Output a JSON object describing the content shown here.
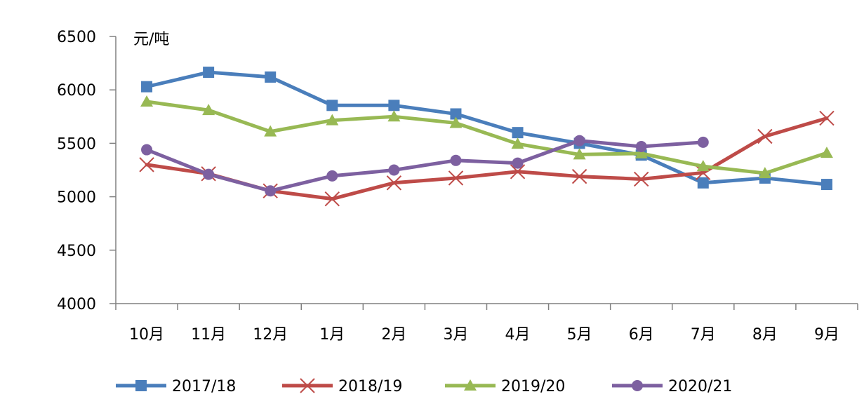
{
  "chart_data": {
    "type": "line",
    "unit_label": "元/吨",
    "categories": [
      "10月",
      "11月",
      "12月",
      "1月",
      "2月",
      "3月",
      "4月",
      "5月",
      "6月",
      "7月",
      "8月",
      "9月"
    ],
    "ylim": [
      4000,
      6500
    ],
    "yticks": [
      4000,
      4500,
      5000,
      5500,
      6000,
      6500
    ],
    "grid": false,
    "legend_position": "bottom",
    "series": [
      {
        "name": "2017/18",
        "color": "#4a7ebb",
        "marker": "square",
        "values": [
          6030,
          6165,
          6120,
          5855,
          5855,
          5775,
          5600,
          5500,
          5390,
          5130,
          5175,
          5115
        ]
      },
      {
        "name": "2018/19",
        "color": "#be4b48",
        "marker": "x",
        "values": [
          5300,
          5215,
          5055,
          4980,
          5130,
          5175,
          5235,
          5190,
          5165,
          5225,
          5565,
          5735
        ]
      },
      {
        "name": "2019/20",
        "color": "#98b954",
        "marker": "triangle",
        "values": [
          5890,
          5810,
          5610,
          5715,
          5750,
          5690,
          5495,
          5395,
          5405,
          5285,
          5220,
          5410
        ]
      },
      {
        "name": "2020/21",
        "color": "#7d60a0",
        "marker": "circle",
        "values": [
          5440,
          5210,
          5055,
          5195,
          5250,
          5340,
          5315,
          5525,
          5470,
          5510,
          null,
          null
        ]
      }
    ]
  }
}
